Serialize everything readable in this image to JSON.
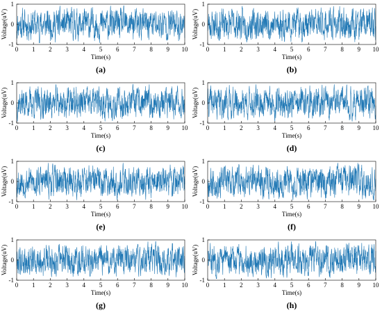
{
  "figure": {
    "panels": [
      "(a)",
      "(b)",
      "(c)",
      "(d)",
      "(e)",
      "(f)",
      "(g)",
      "(h)"
    ]
  },
  "chart_data": [
    {
      "label": "(a)",
      "type": "line",
      "xlabel": "Time(s)",
      "ylabel": "Voltage(uV)",
      "xlim": [
        0,
        10
      ],
      "ylim": [
        -1,
        1
      ],
      "xticks": [
        0,
        1,
        2,
        3,
        4,
        5,
        6,
        7,
        8,
        9,
        10
      ],
      "yticks": [
        -1,
        0,
        1
      ],
      "color": "#1f77b4",
      "seed": 11
    },
    {
      "label": "(b)",
      "type": "line",
      "xlabel": "Time(s)",
      "ylabel": "Voltage(uV)",
      "xlim": [
        0,
        10
      ],
      "ylim": [
        -1,
        1
      ],
      "xticks": [
        0,
        1,
        2,
        3,
        4,
        5,
        6,
        7,
        8,
        9,
        10
      ],
      "yticks": [
        -1,
        0,
        1
      ],
      "color": "#1f77b4",
      "seed": 23
    },
    {
      "label": "(c)",
      "type": "line",
      "xlabel": "Time(s)",
      "ylabel": "Voltage(uV)",
      "xlim": [
        0,
        10
      ],
      "ylim": [
        -1,
        1
      ],
      "xticks": [
        0,
        1,
        2,
        3,
        4,
        5,
        6,
        7,
        8,
        9,
        10
      ],
      "yticks": [
        -1,
        0,
        1
      ],
      "color": "#1f77b4",
      "seed": 37
    },
    {
      "label": "(d)",
      "type": "line",
      "xlabel": "Time(s)",
      "ylabel": "Voltage(uV)",
      "xlim": [
        0,
        10
      ],
      "ylim": [
        -1,
        1
      ],
      "xticks": [
        0,
        1,
        2,
        3,
        4,
        5,
        6,
        7,
        8,
        9,
        10
      ],
      "yticks": [
        -1,
        0,
        1
      ],
      "color": "#1f77b4",
      "seed": 41
    },
    {
      "label": "(e)",
      "type": "line",
      "xlabel": "Time(s)",
      "ylabel": "Voltage(uV)",
      "xlim": [
        0,
        10
      ],
      "ylim": [
        -1,
        1
      ],
      "xticks": [
        0,
        1,
        2,
        3,
        4,
        5,
        6,
        7,
        8,
        9,
        10
      ],
      "yticks": [
        -1,
        0,
        1
      ],
      "color": "#1f77b4",
      "seed": 53
    },
    {
      "label": "(f)",
      "type": "line",
      "xlabel": "Time(s)",
      "ylabel": "Voltage(uV)",
      "xlim": [
        0,
        10
      ],
      "ylim": [
        -1,
        1
      ],
      "xticks": [
        0,
        1,
        2,
        3,
        4,
        5,
        6,
        7,
        8,
        9,
        10
      ],
      "yticks": [
        -1,
        0,
        1
      ],
      "color": "#1f77b4",
      "seed": 67
    },
    {
      "label": "(g)",
      "type": "line",
      "xlabel": "Time(s)",
      "ylabel": "Voltage(uV)",
      "xlim": [
        0,
        10
      ],
      "ylim": [
        -1,
        1
      ],
      "xticks": [
        0,
        1,
        2,
        3,
        4,
        5,
        6,
        7,
        8,
        9,
        10
      ],
      "yticks": [
        -1,
        0,
        1
      ],
      "color": "#1f77b4",
      "seed": 79
    },
    {
      "label": "(h)",
      "type": "line",
      "xlabel": "Time(s)",
      "ylabel": "Voltage(uV)",
      "xlim": [
        0,
        10
      ],
      "ylim": [
        -1,
        1
      ],
      "xticks": [
        0,
        1,
        2,
        3,
        4,
        5,
        6,
        7,
        8,
        9,
        10
      ],
      "yticks": [
        -1,
        0,
        1
      ],
      "color": "#1f77b4",
      "seed": 83
    }
  ]
}
